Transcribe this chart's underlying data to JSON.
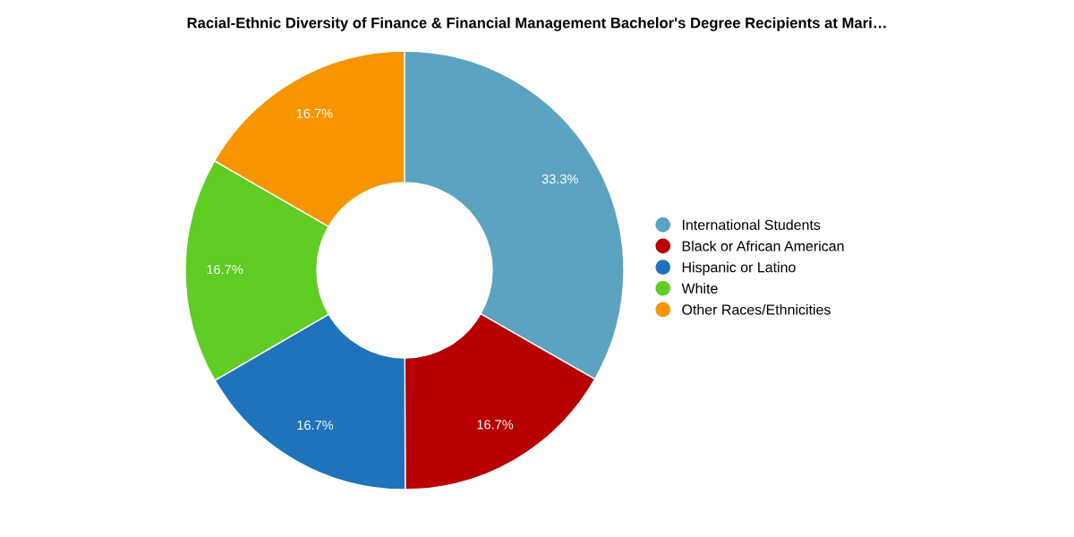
{
  "chart_data": {
    "type": "donut",
    "title": "Racial-Ethnic Diversity of Finance & Financial Management Bachelor's Degree Recipients at Mari…",
    "categories": [
      "International Students",
      "Black or African American",
      "Hispanic or Latino",
      "White",
      "Other Races/Ethnicities"
    ],
    "values": [
      33.3,
      16.7,
      16.7,
      16.7,
      16.7
    ],
    "value_labels": [
      "33.3%",
      "16.7%",
      "16.7%",
      "16.7%",
      "16.7%"
    ],
    "colors": [
      "#5ba3c0",
      "#b80000",
      "#1f73bb",
      "#5fcd23",
      "#f79500"
    ],
    "legend": "right"
  }
}
